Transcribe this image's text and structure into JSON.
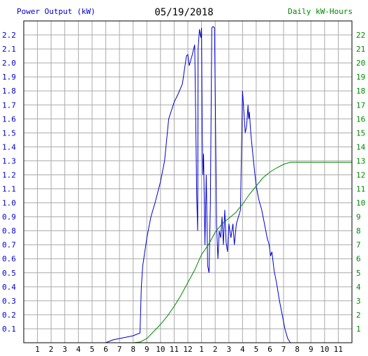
{
  "header": {
    "date": "05/19/2018",
    "left_axis_title": "Power Output (kW)",
    "right_axis_title": "Daily kW-Hours"
  },
  "colors": {
    "power": "#0000cc",
    "energy": "#008800",
    "grid": "#aaaaaa",
    "border": "#000000"
  },
  "chart_data": {
    "type": "line",
    "x_ticks": [
      "1",
      "2",
      "3",
      "4",
      "5",
      "6",
      "7",
      "8",
      "9",
      "10",
      "11",
      "12",
      "1",
      "2",
      "3",
      "4",
      "5",
      "6",
      "7",
      "8",
      "9",
      "10",
      "11"
    ],
    "xlim": [
      0,
      24
    ],
    "x_unit": "hour of day",
    "y_left": {
      "lim": [
        0,
        2.3
      ],
      "ticks": [
        "0.1",
        "0.2",
        "0.3",
        "0.4",
        "0.5",
        "0.6",
        "0.7",
        "0.8",
        "0.9",
        "1.0",
        "1.1",
        "1.2",
        "1.3",
        "1.4",
        "1.5",
        "1.6",
        "1.7",
        "1.8",
        "1.9",
        "2.0",
        "2.1",
        "2.2"
      ]
    },
    "y_right": {
      "lim": [
        0,
        23
      ],
      "ticks": [
        "1",
        "2",
        "3",
        "4",
        "5",
        "6",
        "7",
        "8",
        "9",
        "10",
        "11",
        "12",
        "13",
        "14",
        "15",
        "16",
        "17",
        "18",
        "19",
        "20",
        "21",
        "22"
      ]
    },
    "grid": true,
    "series": [
      {
        "axis": "left",
        "color": "#0000cc",
        "points": [
          [
            6.0,
            0.0
          ],
          [
            6.5,
            0.02
          ],
          [
            7.0,
            0.03
          ],
          [
            8.0,
            0.05
          ],
          [
            8.5,
            0.07
          ],
          [
            8.6,
            0.4
          ],
          [
            8.7,
            0.55
          ],
          [
            9.0,
            0.75
          ],
          [
            9.3,
            0.9
          ],
          [
            9.6,
            1.0
          ],
          [
            10.0,
            1.15
          ],
          [
            10.3,
            1.3
          ],
          [
            10.6,
            1.6
          ],
          [
            11.0,
            1.72
          ],
          [
            11.3,
            1.78
          ],
          [
            11.6,
            1.85
          ],
          [
            11.9,
            2.05
          ],
          [
            12.0,
            2.06
          ],
          [
            12.1,
            1.98
          ],
          [
            12.3,
            2.05
          ],
          [
            12.5,
            2.13
          ],
          [
            12.55,
            1.8
          ],
          [
            12.65,
            1.05
          ],
          [
            12.72,
            0.8
          ],
          [
            12.75,
            2.1
          ],
          [
            12.85,
            2.24
          ],
          [
            12.95,
            2.18
          ],
          [
            13.0,
            2.25
          ],
          [
            13.05,
            1.5
          ],
          [
            13.1,
            1.2
          ],
          [
            13.15,
            1.35
          ],
          [
            13.25,
            0.7
          ],
          [
            13.35,
            1.2
          ],
          [
            13.45,
            0.55
          ],
          [
            13.55,
            0.5
          ],
          [
            13.65,
            1.0
          ],
          [
            13.75,
            2.25
          ],
          [
            13.85,
            2.26
          ],
          [
            13.95,
            2.25
          ],
          [
            14.0,
            1.8
          ],
          [
            14.1,
            0.85
          ],
          [
            14.2,
            0.6
          ],
          [
            14.3,
            0.8
          ],
          [
            14.4,
            0.75
          ],
          [
            14.5,
            0.9
          ],
          [
            14.6,
            0.7
          ],
          [
            14.7,
            0.95
          ],
          [
            14.8,
            0.72
          ],
          [
            14.9,
            0.65
          ],
          [
            15.0,
            0.85
          ],
          [
            15.15,
            0.75
          ],
          [
            15.3,
            0.85
          ],
          [
            15.4,
            0.7
          ],
          [
            15.55,
            0.85
          ],
          [
            15.7,
            0.9
          ],
          [
            15.85,
            0.95
          ],
          [
            15.9,
            1.25
          ],
          [
            16.0,
            1.8
          ],
          [
            16.1,
            1.65
          ],
          [
            16.2,
            1.5
          ],
          [
            16.3,
            1.55
          ],
          [
            16.4,
            1.7
          ],
          [
            16.45,
            1.6
          ],
          [
            16.5,
            1.65
          ],
          [
            16.6,
            1.5
          ],
          [
            16.8,
            1.3
          ],
          [
            17.0,
            1.12
          ],
          [
            17.2,
            1.02
          ],
          [
            17.4,
            0.95
          ],
          [
            17.6,
            0.85
          ],
          [
            17.8,
            0.75
          ],
          [
            17.95,
            0.7
          ],
          [
            18.05,
            0.62
          ],
          [
            18.15,
            0.65
          ],
          [
            18.3,
            0.52
          ],
          [
            18.5,
            0.42
          ],
          [
            18.7,
            0.3
          ],
          [
            18.9,
            0.2
          ],
          [
            19.1,
            0.1
          ],
          [
            19.3,
            0.03
          ],
          [
            19.5,
            0.0
          ],
          [
            19.7,
            0.0
          ]
        ]
      },
      {
        "axis": "right",
        "color": "#008800",
        "points": [
          [
            6.0,
            0.0
          ],
          [
            8.0,
            0.0
          ],
          [
            8.5,
            0.05
          ],
          [
            9.0,
            0.3
          ],
          [
            9.5,
            0.8
          ],
          [
            10.0,
            1.3
          ],
          [
            10.5,
            1.9
          ],
          [
            11.0,
            2.6
          ],
          [
            11.5,
            3.4
          ],
          [
            12.0,
            4.3
          ],
          [
            12.5,
            5.2
          ],
          [
            13.0,
            6.3
          ],
          [
            13.5,
            7.0
          ],
          [
            14.0,
            7.9
          ],
          [
            14.5,
            8.5
          ],
          [
            15.0,
            8.9
          ],
          [
            15.5,
            9.3
          ],
          [
            16.0,
            9.9
          ],
          [
            16.5,
            10.6
          ],
          [
            17.0,
            11.2
          ],
          [
            17.5,
            11.8
          ],
          [
            18.0,
            12.2
          ],
          [
            18.5,
            12.5
          ],
          [
            19.0,
            12.75
          ],
          [
            19.5,
            12.9
          ],
          [
            20.0,
            12.9
          ],
          [
            24.0,
            12.9
          ]
        ]
      }
    ]
  }
}
